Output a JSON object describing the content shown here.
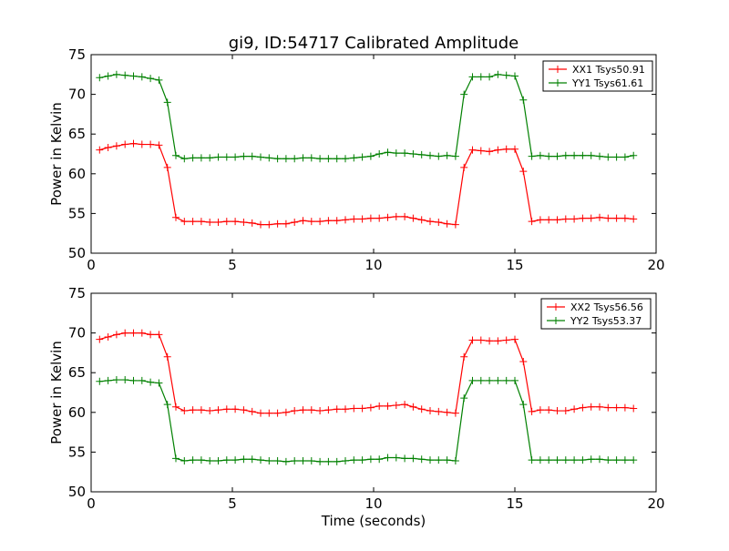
{
  "figure": {
    "title": "gi9, ID:54717 Calibrated Amplitude"
  },
  "chart_data": [
    {
      "type": "line",
      "title": "gi9, ID:54717 Calibrated Amplitude",
      "xlabel": "",
      "ylabel": "Power in Kelvin",
      "xlim": [
        0,
        20
      ],
      "ylim": [
        50,
        75
      ],
      "xticks": [
        0,
        5,
        10,
        15,
        20
      ],
      "yticks": [
        50,
        55,
        60,
        65,
        70,
        75
      ],
      "grid": false,
      "legend_position": "top-right",
      "x": [
        0.3,
        0.6,
        0.9,
        1.2,
        1.5,
        1.8,
        2.1,
        2.4,
        2.7,
        3.0,
        3.3,
        3.6,
        3.9,
        4.2,
        4.5,
        4.8,
        5.1,
        5.4,
        5.7,
        6.0,
        6.3,
        6.6,
        6.9,
        7.2,
        7.5,
        7.8,
        8.1,
        8.4,
        8.7,
        9.0,
        9.3,
        9.6,
        9.9,
        10.2,
        10.5,
        10.8,
        11.1,
        11.4,
        11.7,
        12.0,
        12.3,
        12.6,
        12.9,
        13.2,
        13.5,
        13.8,
        14.1,
        14.4,
        14.7,
        15.0,
        15.3,
        15.6,
        15.9,
        16.2,
        16.5,
        16.8,
        17.1,
        17.4,
        17.7,
        18.0,
        18.3,
        18.6,
        18.9,
        19.2
      ],
      "series": [
        {
          "name": "XX1 Tsys50.91",
          "color": "#ff0000",
          "values": [
            63.0,
            63.3,
            63.5,
            63.7,
            63.8,
            63.7,
            63.7,
            63.6,
            60.8,
            54.5,
            54.0,
            54.0,
            54.0,
            53.9,
            53.9,
            54.0,
            54.0,
            53.9,
            53.8,
            53.6,
            53.6,
            53.7,
            53.7,
            53.9,
            54.1,
            54.0,
            54.0,
            54.1,
            54.1,
            54.2,
            54.3,
            54.3,
            54.4,
            54.4,
            54.5,
            54.6,
            54.6,
            54.4,
            54.2,
            54.0,
            53.9,
            53.7,
            53.6,
            60.8,
            63.0,
            62.9,
            62.8,
            63.0,
            63.1,
            63.1,
            60.3,
            54.0,
            54.2,
            54.2,
            54.2,
            54.3,
            54.3,
            54.4,
            54.4,
            54.5,
            54.4,
            54.4,
            54.4,
            54.3
          ]
        },
        {
          "name": "YY1 Tsys61.61",
          "color": "#008000",
          "values": [
            72.1,
            72.3,
            72.5,
            72.4,
            72.3,
            72.2,
            72.0,
            71.8,
            69.0,
            62.3,
            61.9,
            62.0,
            62.0,
            62.0,
            62.1,
            62.1,
            62.1,
            62.2,
            62.2,
            62.1,
            62.0,
            61.9,
            61.9,
            61.9,
            62.0,
            62.0,
            61.9,
            61.9,
            61.9,
            61.9,
            62.0,
            62.1,
            62.2,
            62.5,
            62.7,
            62.6,
            62.6,
            62.5,
            62.4,
            62.3,
            62.2,
            62.3,
            62.2,
            70.0,
            72.2,
            72.2,
            72.2,
            72.5,
            72.4,
            72.3,
            69.3,
            62.2,
            62.3,
            62.2,
            62.2,
            62.3,
            62.3,
            62.3,
            62.3,
            62.2,
            62.1,
            62.1,
            62.1,
            62.3
          ]
        }
      ]
    },
    {
      "type": "line",
      "title": "",
      "xlabel": "Time (seconds)",
      "ylabel": "Power in Kelvin",
      "xlim": [
        0,
        20
      ],
      "ylim": [
        50,
        75
      ],
      "xticks": [
        0,
        5,
        10,
        15,
        20
      ],
      "yticks": [
        50,
        55,
        60,
        65,
        70,
        75
      ],
      "grid": false,
      "legend_position": "top-right",
      "x": [
        0.3,
        0.6,
        0.9,
        1.2,
        1.5,
        1.8,
        2.1,
        2.4,
        2.7,
        3.0,
        3.3,
        3.6,
        3.9,
        4.2,
        4.5,
        4.8,
        5.1,
        5.4,
        5.7,
        6.0,
        6.3,
        6.6,
        6.9,
        7.2,
        7.5,
        7.8,
        8.1,
        8.4,
        8.7,
        9.0,
        9.3,
        9.6,
        9.9,
        10.2,
        10.5,
        10.8,
        11.1,
        11.4,
        11.7,
        12.0,
        12.3,
        12.6,
        12.9,
        13.2,
        13.5,
        13.8,
        14.1,
        14.4,
        14.7,
        15.0,
        15.3,
        15.6,
        15.9,
        16.2,
        16.5,
        16.8,
        17.1,
        17.4,
        17.7,
        18.0,
        18.3,
        18.6,
        18.9,
        19.2
      ],
      "series": [
        {
          "name": "XX2 Tsys56.56",
          "color": "#ff0000",
          "values": [
            69.2,
            69.5,
            69.8,
            70.0,
            70.0,
            70.0,
            69.8,
            69.8,
            67.0,
            60.7,
            60.2,
            60.3,
            60.3,
            60.2,
            60.3,
            60.4,
            60.4,
            60.3,
            60.1,
            59.9,
            59.9,
            59.9,
            60.0,
            60.2,
            60.3,
            60.3,
            60.2,
            60.3,
            60.4,
            60.4,
            60.5,
            60.5,
            60.6,
            60.8,
            60.8,
            60.9,
            61.0,
            60.7,
            60.4,
            60.2,
            60.1,
            60.0,
            59.9,
            67.0,
            69.1,
            69.1,
            69.0,
            69.0,
            69.1,
            69.2,
            66.4,
            60.1,
            60.3,
            60.3,
            60.2,
            60.2,
            60.4,
            60.6,
            60.7,
            60.7,
            60.6,
            60.6,
            60.6,
            60.5
          ]
        },
        {
          "name": "YY2 Tsys53.37",
          "color": "#008000",
          "values": [
            63.9,
            64.0,
            64.1,
            64.1,
            64.0,
            64.0,
            63.8,
            63.7,
            61.0,
            54.2,
            53.9,
            54.0,
            54.0,
            53.9,
            53.9,
            54.0,
            54.0,
            54.1,
            54.1,
            54.0,
            53.9,
            53.9,
            53.8,
            53.9,
            53.9,
            53.9,
            53.8,
            53.8,
            53.8,
            53.9,
            54.0,
            54.0,
            54.1,
            54.1,
            54.3,
            54.3,
            54.2,
            54.2,
            54.1,
            54.0,
            54.0,
            54.0,
            53.9,
            61.8,
            64.0,
            64.0,
            64.0,
            64.0,
            64.0,
            64.0,
            61.0,
            54.0,
            54.0,
            54.0,
            54.0,
            54.0,
            54.0,
            54.0,
            54.1,
            54.1,
            54.0,
            54.0,
            54.0,
            54.0
          ]
        }
      ]
    }
  ]
}
